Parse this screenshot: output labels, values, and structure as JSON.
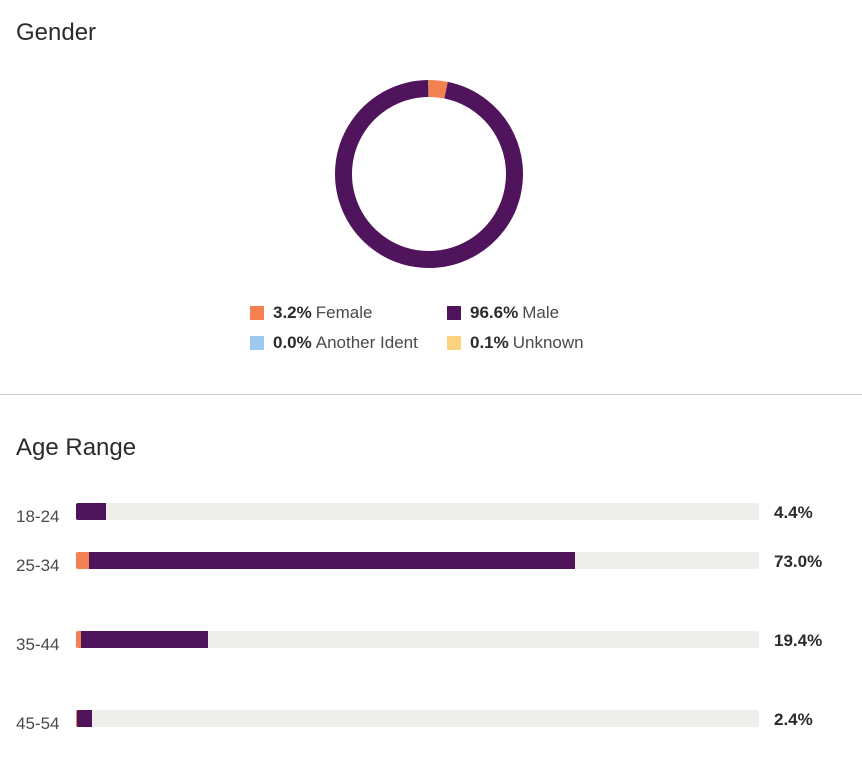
{
  "colors": {
    "female": "#f58052",
    "male": "#4f145b",
    "another": "#9dc8f0",
    "unknown": "#fcd27e",
    "track": "#efeeeb"
  },
  "gender": {
    "title": "Gender",
    "legend": [
      {
        "pct": "3.2%",
        "label": "Female"
      },
      {
        "pct": "96.6%",
        "label": "Male"
      },
      {
        "pct": "0.0%",
        "label": "Another Ident"
      },
      {
        "pct": "0.1%",
        "label": "Unknown"
      }
    ]
  },
  "age": {
    "title": "Age Range",
    "rows": [
      {
        "label": "18-24",
        "value": "4.4%"
      },
      {
        "label": "25-34",
        "value": "73.0%"
      },
      {
        "label": "35-44",
        "value": "19.4%"
      },
      {
        "label": "45-54",
        "value": "2.4%"
      }
    ]
  },
  "chart_data": [
    {
      "type": "pie",
      "title": "Gender",
      "categories": [
        "Female",
        "Male",
        "Another Identity",
        "Unknown"
      ],
      "values": [
        3.2,
        96.6,
        0.0,
        0.1
      ],
      "unit": "%",
      "style": "donut"
    },
    {
      "type": "bar",
      "orientation": "horizontal",
      "stacked": true,
      "title": "Age Range",
      "categories": [
        "18-24",
        "25-34",
        "35-44",
        "45-54"
      ],
      "totals": [
        4.4,
        73.0,
        19.4,
        2.4
      ],
      "series": [
        {
          "name": "Female",
          "values": [
            0,
            1.9,
            0.7,
            0.1
          ]
        },
        {
          "name": "Male",
          "values": [
            4.4,
            71.1,
            18.7,
            2.3
          ]
        }
      ],
      "xlim": [
        0,
        100
      ],
      "unit": "%"
    }
  ]
}
